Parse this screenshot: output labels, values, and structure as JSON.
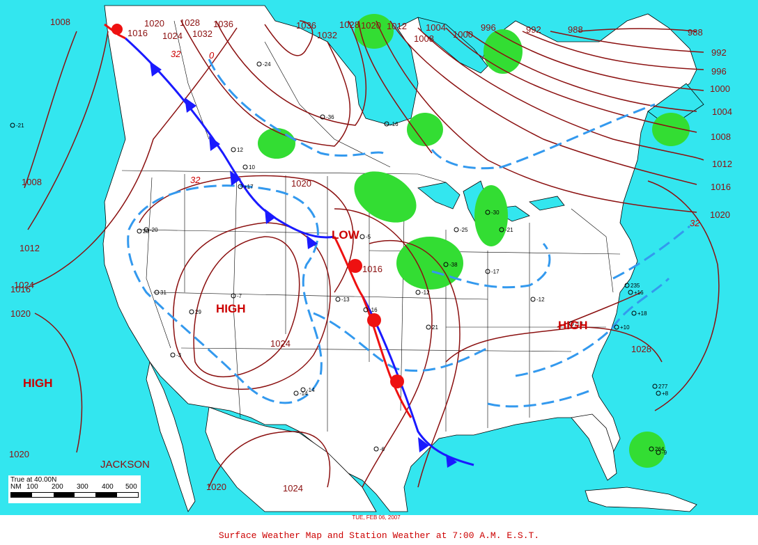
{
  "caption": "Surface Weather Map and Station Weather at 7:00 A.M. E.S.T.",
  "date_stamp": "TUE, FEB 06, 2007",
  "colors": {
    "ocean": "#33e6ef",
    "land": "#ffffff",
    "isobar": "#8b1010",
    "thickness": "#3399ee",
    "cold_front": "#1a1aff",
    "warm_front": "#ee1111",
    "precip": "#33dd33",
    "label_red": "#cc0000"
  },
  "scale_bar": {
    "title": "True at 40.00N",
    "units": "NM",
    "ticks": [
      "100",
      "200",
      "300",
      "400",
      "500"
    ]
  },
  "pressure_systems": [
    {
      "type": "HIGH",
      "label": "HIGH",
      "location": "Great Basin"
    },
    {
      "type": "HIGH",
      "label": "HIGH",
      "location": "Southeast"
    },
    {
      "type": "HIGH",
      "label": "HIGH",
      "location": "Pacific"
    },
    {
      "type": "LOW",
      "label": "LOW",
      "location": "Upper Midwest"
    }
  ],
  "isobar_labels": [
    "1008",
    "1020",
    "1028",
    "1036",
    "1032",
    "1024",
    "1016",
    "1036",
    "1032",
    "1028",
    "1020",
    "1012",
    "1004",
    "1008",
    "1000",
    "996",
    "992",
    "988",
    "988",
    "992",
    "996",
    "1000",
    "1004",
    "1008",
    "1012",
    "1016",
    "1020",
    "1008",
    "1012",
    "1016",
    "1020",
    "1020",
    "1020",
    "1024",
    "1016",
    "1024",
    "1020",
    "1028",
    "1024"
  ],
  "thickness_labels": [
    "32",
    "0",
    "32",
    "32"
  ],
  "city_labels": [
    "JACKSON"
  ],
  "stations": [
    {
      "id": "s1",
      "temp": "-24"
    },
    {
      "id": "s2",
      "temp": "-36"
    },
    {
      "id": "s3",
      "temp": "-16"
    },
    {
      "id": "s4",
      "temp": "10"
    },
    {
      "id": "s5",
      "temp": "-21"
    },
    {
      "id": "s6",
      "temp": "12"
    },
    {
      "id": "s7",
      "temp": "31"
    },
    {
      "id": "s8",
      "temp": "29"
    },
    {
      "id": "s9",
      "temp": "20"
    },
    {
      "id": "s10",
      "temp": "-7"
    },
    {
      "id": "s11",
      "temp": "-14"
    },
    {
      "id": "s12",
      "temp": "-16"
    },
    {
      "id": "s13",
      "temp": "21"
    },
    {
      "id": "s14",
      "temp": "-3"
    },
    {
      "id": "s15",
      "temp": "-5"
    },
    {
      "id": "s16",
      "temp": "-12"
    },
    {
      "id": "s17",
      "temp": "-13"
    },
    {
      "id": "s18",
      "temp": "-6"
    },
    {
      "id": "s19",
      "temp": "-17"
    },
    {
      "id": "s20",
      "temp": "-25"
    },
    {
      "id": "s21",
      "temp": "-38"
    },
    {
      "id": "s22",
      "temp": "-30"
    },
    {
      "id": "s23",
      "temp": "-21"
    },
    {
      "id": "s24",
      "temp": "-12"
    },
    {
      "id": "s25",
      "temp": "+16"
    },
    {
      "id": "s26",
      "temp": "+18"
    },
    {
      "id": "s27",
      "temp": "-13"
    },
    {
      "id": "s28",
      "temp": "+10"
    },
    {
      "id": "s29",
      "temp": "+8"
    },
    {
      "id": "s30",
      "temp": "-9"
    },
    {
      "id": "s31",
      "temp": "235"
    },
    {
      "id": "s32",
      "temp": "277"
    },
    {
      "id": "s33",
      "temp": "264"
    },
    {
      "id": "s34",
      "temp": "-20"
    },
    {
      "id": "s35",
      "temp": "-14"
    },
    {
      "id": "s36",
      "temp": "+17"
    }
  ]
}
